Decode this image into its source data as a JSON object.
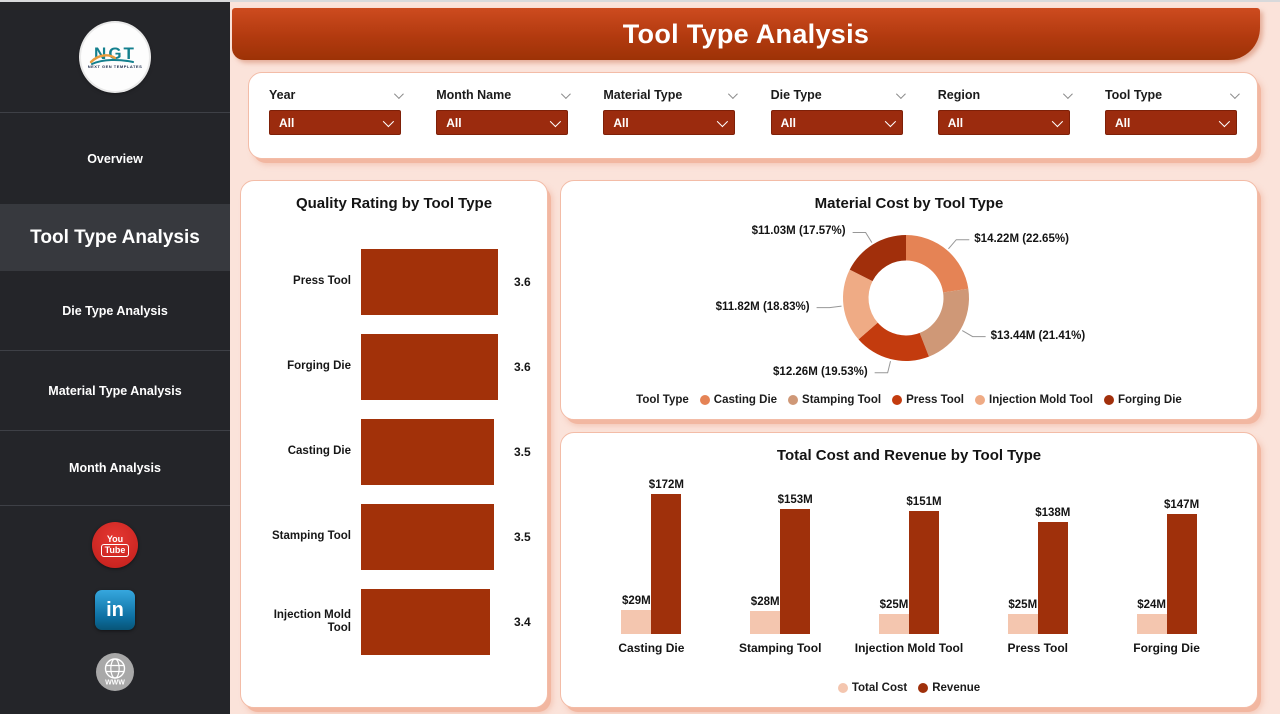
{
  "header": {
    "title": "Tool Type Analysis"
  },
  "sidebar": {
    "logo": {
      "text": "NGT",
      "subtext": "NEXT GEN TEMPLATES"
    },
    "items": [
      {
        "label": "Overview",
        "active": false
      },
      {
        "label": "Tool Type Analysis",
        "active": true
      },
      {
        "label": "Die Type Analysis",
        "active": false
      },
      {
        "label": "Material Type Analysis",
        "active": false
      },
      {
        "label": "Month Analysis",
        "active": false
      }
    ],
    "social": [
      "youtube",
      "linkedin",
      "website"
    ]
  },
  "filters": [
    {
      "label": "Year",
      "value": "All"
    },
    {
      "label": "Month Name",
      "value": "All"
    },
    {
      "label": "Material Type",
      "value": "All"
    },
    {
      "label": "Die Type",
      "value": "All"
    },
    {
      "label": "Region",
      "value": "All"
    },
    {
      "label": "Tool Type",
      "value": "All"
    }
  ],
  "colors": {
    "banner_top": "#CD4B1F",
    "banner_bottom": "#9D3206",
    "page_background": "#FBE3DA",
    "card_border": "#F3BCA7",
    "sidebar_background": "#242529",
    "slicer_box": "#9B2B0E",
    "dark_bar": "#A23109",
    "light_bar": "#F4C6AF"
  },
  "chart_data": [
    {
      "type": "bar",
      "orientation": "horizontal",
      "title": "Quality Rating by Tool Type",
      "categories": [
        "Press Tool",
        "Forging Die",
        "Casting Die",
        "Stamping Tool",
        "Injection Mold Tool"
      ],
      "values": [
        3.6,
        3.6,
        3.5,
        3.5,
        3.4
      ],
      "value_labels": [
        "3.6",
        "3.6",
        "3.5",
        "3.5",
        "3.4"
      ],
      "xlim": [
        0,
        3.9
      ],
      "bar_color": "#A23109",
      "grid": false,
      "legend": false
    },
    {
      "type": "pie",
      "subtype": "donut",
      "title": "Material Cost by Tool Type",
      "legend_title": "Tool Type",
      "legend_position": "bottom",
      "slices": [
        {
          "label": "Casting Die",
          "value": 14.22,
          "percent": 22.65,
          "value_label": "$14.22M (22.65%)",
          "color": "#E58355"
        },
        {
          "label": "Stamping Tool",
          "value": 13.44,
          "percent": 21.41,
          "value_label": "$13.44M (21.41%)",
          "color": "#CF9877"
        },
        {
          "label": "Press Tool",
          "value": 12.26,
          "percent": 19.53,
          "value_label": "$12.26M (19.53%)",
          "color": "#C33B0E"
        },
        {
          "label": "Injection Mold Tool",
          "value": 11.82,
          "percent": 18.83,
          "value_label": "$11.82M (18.83%)",
          "color": "#EFAB85"
        },
        {
          "label": "Forging Die",
          "value": 11.03,
          "percent": 17.57,
          "value_label": "$11.03M (17.57%)",
          "color": "#A12F0B"
        }
      ],
      "units": "$M"
    },
    {
      "type": "bar",
      "orientation": "vertical",
      "grouped": true,
      "title": "Total Cost and Revenue by Tool Type",
      "categories": [
        "Casting Die",
        "Stamping Tool",
        "Injection Mold Tool",
        "Press Tool",
        "Forging Die"
      ],
      "series": [
        {
          "name": "Total Cost",
          "color": "#F4C6AF",
          "values": [
            29,
            28,
            25,
            25,
            24
          ],
          "value_labels": [
            "$29M",
            "$28M",
            "$25M",
            "$25M",
            "$24M"
          ]
        },
        {
          "name": "Revenue",
          "color": "#9F300B",
          "values": [
            172,
            153,
            151,
            138,
            147
          ],
          "value_labels": [
            "$172M",
            "$153M",
            "$151M",
            "$138M",
            "$147M"
          ]
        }
      ],
      "ylim": [
        0,
        172
      ],
      "legend_position": "bottom",
      "grid": false
    }
  ]
}
